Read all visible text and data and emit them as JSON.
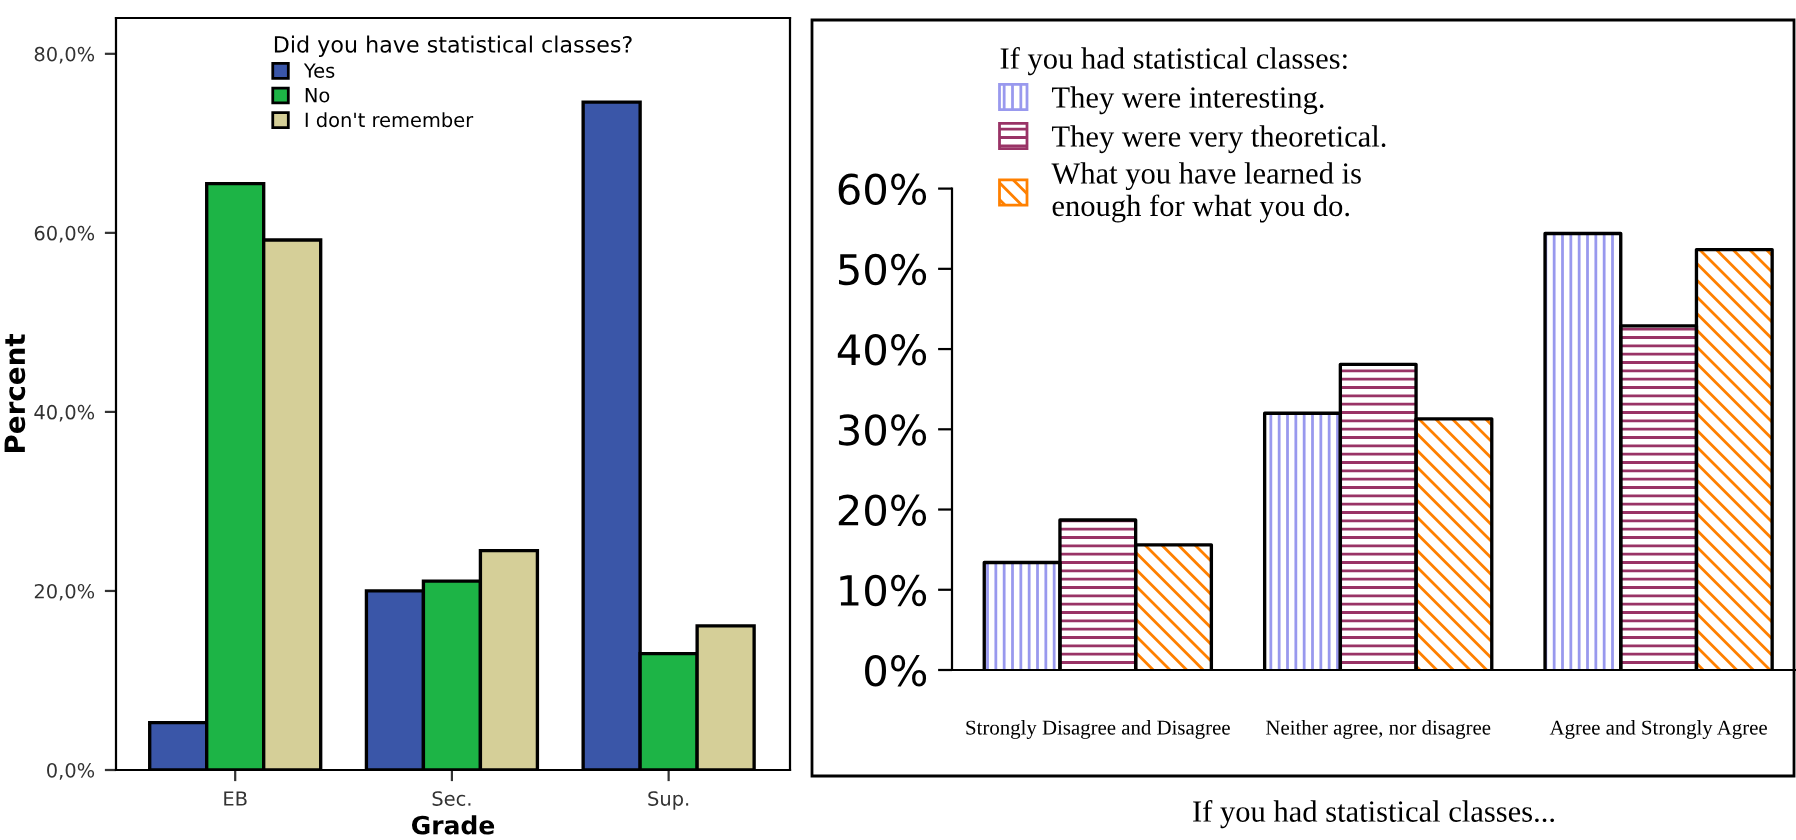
{
  "chart_data": [
    {
      "type": "bar",
      "xlabel": "Grade",
      "ylabel": "Percent",
      "legend_title": "Did you have statistical classes?",
      "legend": "top",
      "grid": false,
      "categories": [
        "EB",
        "Sec.",
        "Sup."
      ],
      "series": [
        {
          "name": "Yes",
          "color": "#3a56a8",
          "values": [
            5.3,
            20.0,
            74.6
          ]
        },
        {
          "name": "No",
          "color": "#1db446",
          "values": [
            65.5,
            21.1,
            13.0
          ]
        },
        {
          "name": "I don't remember",
          "color": "#d5cf98",
          "values": [
            59.2,
            24.5,
            16.1
          ]
        }
      ],
      "ylim": [
        0,
        84
      ],
      "yticks": [
        {
          "value": 0,
          "label": "0,0%"
        },
        {
          "value": 20,
          "label": "20,0%"
        },
        {
          "value": 40,
          "label": "40,0%"
        },
        {
          "value": 60,
          "label": "60,0%"
        },
        {
          "value": 80,
          "label": "80,0%"
        }
      ]
    },
    {
      "type": "bar",
      "xlabel": "If you had statistical classes...",
      "legend_title": "If you had statistical classes:",
      "legend": "top left",
      "grid": false,
      "categories": [
        "Strongly Disagree and Disagree",
        "Neither agree, nor disagree",
        "Agree and Strongly Agree"
      ],
      "series": [
        {
          "name": "They were interesting.",
          "color": "#9999ee",
          "values": [
            13.4,
            32.0,
            54.4
          ]
        },
        {
          "name": "They were very theoretical.",
          "color": "#993366",
          "values": [
            18.7,
            38.1,
            42.9
          ]
        },
        {
          "name": "What you have learned is\nenough for what you do.",
          "color": "#ff8000",
          "values": [
            15.6,
            31.3,
            52.4
          ]
        }
      ],
      "ylim": [
        0,
        60
      ],
      "yticks": [
        {
          "value": 0,
          "label": "0%"
        },
        {
          "value": 10,
          "label": "10%"
        },
        {
          "value": 20,
          "label": "20%"
        },
        {
          "value": 30,
          "label": "30%"
        },
        {
          "value": 40,
          "label": "40%"
        },
        {
          "value": 50,
          "label": "50%"
        },
        {
          "value": 60,
          "label": "60%"
        }
      ]
    }
  ]
}
